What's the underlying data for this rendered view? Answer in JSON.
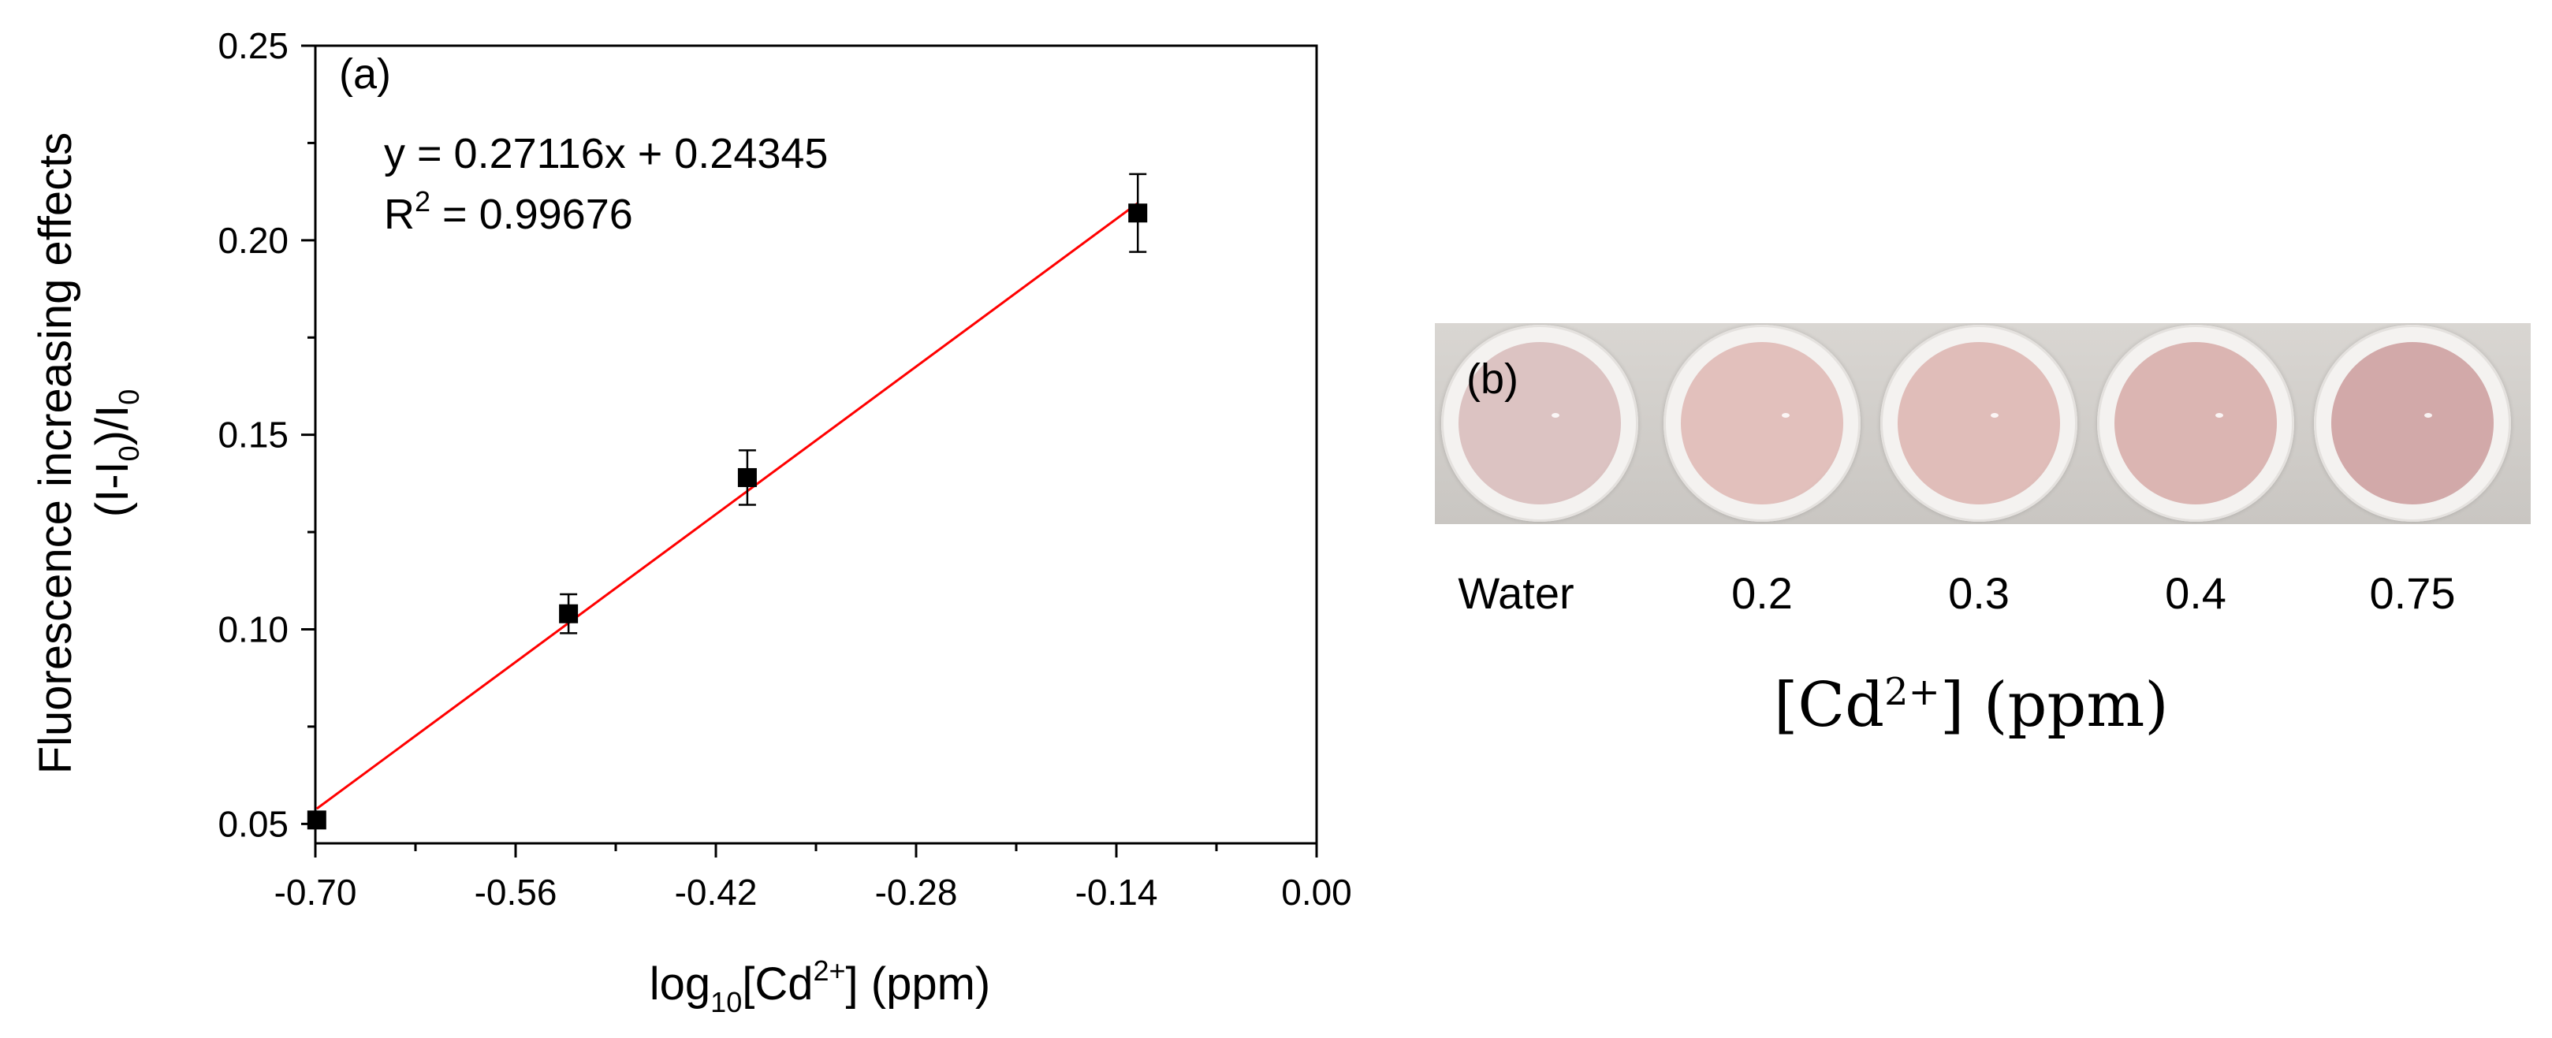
{
  "chart_data": {
    "type": "scatter",
    "panel_label": "(a)",
    "xlabel": {
      "prefix": "log",
      "subscript": "10",
      "text": "[Cd",
      "superscript": "2+",
      "suffix": "] (ppm)"
    },
    "ylabel": {
      "line1": "Fluorescence increasing effects",
      "line2_a": "(I-I",
      "line2_sub": "0",
      "line2_b": ")/I",
      "line2_sub2": "0"
    },
    "xlim": [
      -0.7,
      0.0
    ],
    "ylim": [
      0.045,
      0.25
    ],
    "x_ticks": [
      -0.7,
      -0.56,
      -0.42,
      -0.28,
      -0.14,
      0.0
    ],
    "x_tick_labels": [
      "-0.70",
      "-0.56",
      "-0.42",
      "-0.28",
      "-0.14",
      "0.00"
    ],
    "y_ticks": [
      0.05,
      0.1,
      0.15,
      0.2,
      0.25
    ],
    "y_tick_labels": [
      "0.05",
      "0.10",
      "0.15",
      "0.20",
      "0.25"
    ],
    "series": [
      {
        "points": [
          {
            "x": -0.699,
            "y": 0.051,
            "err": 0.002
          },
          {
            "x": -0.523,
            "y": 0.104,
            "err": 0.005
          },
          {
            "x": -0.398,
            "y": 0.139,
            "err": 0.007
          },
          {
            "x": -0.125,
            "y": 0.207,
            "err": 0.01
          }
        ],
        "marker_color": "#000000"
      }
    ],
    "fit_line": {
      "slope": 0.27116,
      "intercept": 0.24345,
      "x_range": [
        -0.699,
        -0.125
      ],
      "color": "#ff0000"
    },
    "equation": "y = 0.27116x + 0.24345",
    "r2_prefix": "R",
    "r2_sup": "2",
    "r2_value": " = 0.99676",
    "grid": false
  },
  "panel_b": {
    "label": "(b)",
    "wells": [
      {
        "label": "Water",
        "color": "#dcc3c2"
      },
      {
        "label": "0.2",
        "color": "#e2c0bc"
      },
      {
        "label": "0.3",
        "color": "#e0bdb9"
      },
      {
        "label": "0.4",
        "color": "#dbb5b2"
      },
      {
        "label": "0.75",
        "color": "#d2a9a9"
      }
    ],
    "axis_title_a": "[Cd",
    "axis_title_sup": "2+",
    "axis_title_b": "] (ppm)"
  }
}
